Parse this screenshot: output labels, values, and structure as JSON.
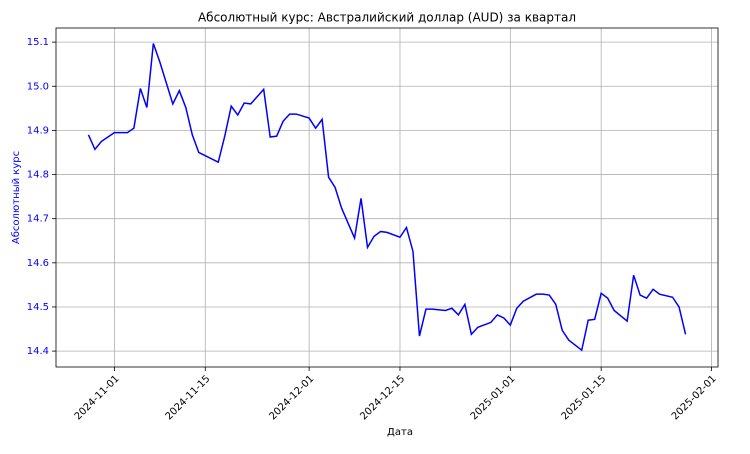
{
  "chart_data": {
    "type": "line",
    "title": "Абсолютный курс: Австралийский доллар (AUD) за квартал",
    "xlabel": "Дата",
    "ylabel": "Абсолютный курс",
    "ylabel_color": "blue",
    "x": [
      "2024-10-28",
      "2024-10-29",
      "2024-10-30",
      "2024-10-31",
      "2024-11-01",
      "2024-11-03",
      "2024-11-04",
      "2024-11-05",
      "2024-11-06",
      "2024-11-07",
      "2024-11-08",
      "2024-11-10",
      "2024-11-11",
      "2024-11-12",
      "2024-11-13",
      "2024-11-14",
      "2024-11-17",
      "2024-11-18",
      "2024-11-19",
      "2024-11-20",
      "2024-11-21",
      "2024-11-22",
      "2024-11-24",
      "2024-11-25",
      "2024-11-26",
      "2024-11-27",
      "2024-11-28",
      "2024-11-29",
      "2024-12-01",
      "2024-12-02",
      "2024-12-03",
      "2024-12-04",
      "2024-12-05",
      "2024-12-06",
      "2024-12-08",
      "2024-12-09",
      "2024-12-10",
      "2024-12-11",
      "2024-12-12",
      "2024-12-13",
      "2024-12-15",
      "2024-12-16",
      "2024-12-17",
      "2024-12-18",
      "2024-12-19",
      "2024-12-20",
      "2024-12-22",
      "2024-12-23",
      "2024-12-24",
      "2024-12-25",
      "2024-12-26",
      "2024-12-27",
      "2024-12-29",
      "2024-12-30",
      "2024-12-31",
      "2025-01-01",
      "2025-01-02",
      "2025-01-03",
      "2025-01-05",
      "2025-01-06",
      "2025-01-07",
      "2025-01-08",
      "2025-01-09",
      "2025-01-10",
      "2025-01-12",
      "2025-01-13",
      "2025-01-14",
      "2025-01-15",
      "2025-01-16",
      "2025-01-17",
      "2025-01-19",
      "2025-01-20",
      "2025-01-21",
      "2025-01-22",
      "2025-01-23",
      "2025-01-24",
      "2025-01-26",
      "2025-01-27",
      "2025-01-28"
    ],
    "values": [
      14.89,
      14.857,
      14.875,
      14.885,
      14.895,
      14.895,
      14.905,
      14.995,
      14.952,
      15.097,
      15.055,
      14.96,
      14.99,
      14.952,
      14.89,
      14.85,
      14.828,
      14.887,
      14.955,
      14.935,
      14.962,
      14.96,
      14.993,
      14.885,
      14.887,
      14.921,
      14.937,
      14.937,
      14.928,
      14.905,
      14.925,
      14.794,
      14.771,
      14.724,
      14.656,
      14.746,
      14.635,
      14.66,
      14.671,
      14.669,
      14.658,
      14.68,
      14.626,
      14.434,
      14.495,
      14.495,
      14.492,
      14.497,
      14.482,
      14.506,
      14.438,
      14.454,
      14.465,
      14.482,
      14.475,
      14.459,
      14.497,
      14.513,
      14.529,
      14.529,
      14.527,
      14.506,
      14.447,
      14.425,
      14.402,
      14.47,
      14.472,
      14.531,
      14.52,
      14.492,
      14.468,
      14.572,
      14.527,
      14.52,
      14.54,
      14.529,
      14.522,
      14.5,
      14.438
    ],
    "color": "blue",
    "xlim": [
      "2024-10-23",
      "2025-02-02"
    ],
    "xticks": [
      "2024-11-01",
      "2024-11-15",
      "2024-12-01",
      "2024-12-15",
      "2025-01-01",
      "2025-01-15",
      "2025-02-01"
    ],
    "ylim": [
      14.364,
      15.132
    ],
    "yticks": [
      14.4,
      14.5,
      14.6,
      14.7,
      14.8,
      14.9,
      {
        "value": 15,
        "label": "15.0"
      },
      15.1
    ],
    "grid": true
  }
}
